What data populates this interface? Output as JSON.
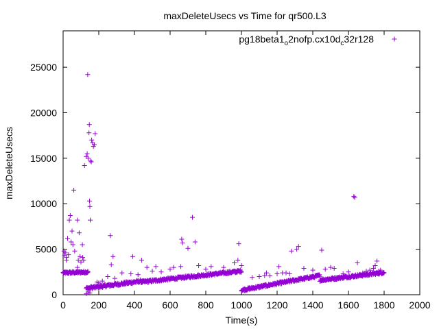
{
  "chart_data": {
    "type": "scatter",
    "title": "maxDeleteUsecs vs Time for qr500.L3",
    "xlabel": "Time(s)",
    "ylabel": "maxDeleteUsecs",
    "xlim": [
      0,
      2000
    ],
    "ylim": [
      0,
      29000
    ],
    "xticks": [
      0,
      200,
      400,
      600,
      800,
      1000,
      1200,
      1400,
      1600,
      1800,
      2000
    ],
    "yticks": [
      0,
      5000,
      10000,
      15000,
      20000,
      25000
    ],
    "grid": false,
    "legend_position": "top-right",
    "series": [
      {
        "name": "pg18beta1_o2nofp.cx10d_c32r128",
        "legend_base": "pg18beta1",
        "legend_sub1": "o",
        "legend_mid": "2nofp.cx10d",
        "legend_sub2": "c",
        "legend_end": "32r128",
        "color": "#9400D3",
        "marker": "plus",
        "trends": [
          {
            "x": [
              0,
              140
            ],
            "y": [
              2400,
              2500
            ],
            "count": 70,
            "jitter": 120
          },
          {
            "x": [
              130,
              440
            ],
            "y": [
              700,
              1500
            ],
            "count": 150,
            "jitter": 150
          },
          {
            "x": [
              440,
              1000
            ],
            "y": [
              1400,
              2600
            ],
            "count": 270,
            "jitter": 130
          },
          {
            "x": [
              1000,
              1440
            ],
            "y": [
              500,
              2100
            ],
            "count": 210,
            "jitter": 130
          },
          {
            "x": [
              1440,
              1800
            ],
            "y": [
              1600,
              2450
            ],
            "count": 180,
            "jitter": 130
          }
        ],
        "outliers": [
          [
            5,
            4800
          ],
          [
            8,
            4300
          ],
          [
            12,
            4600
          ],
          [
            18,
            3800
          ],
          [
            20,
            4100
          ],
          [
            25,
            6200
          ],
          [
            30,
            4400
          ],
          [
            35,
            8200
          ],
          [
            40,
            8700
          ],
          [
            45,
            5800
          ],
          [
            50,
            7000
          ],
          [
            55,
            5500
          ],
          [
            60,
            11500
          ],
          [
            65,
            4800
          ],
          [
            80,
            8200
          ],
          [
            80,
            3000
          ],
          [
            85,
            3800
          ],
          [
            90,
            6800
          ],
          [
            95,
            4200
          ],
          [
            100,
            3600
          ],
          [
            108,
            5500
          ],
          [
            110,
            4100
          ],
          [
            115,
            3800
          ],
          [
            120,
            14200
          ],
          [
            130,
            15200
          ],
          [
            135,
            15500
          ],
          [
            138,
            24200
          ],
          [
            140,
            15000
          ],
          [
            145,
            17800
          ],
          [
            147,
            18700
          ],
          [
            148,
            10300
          ],
          [
            150,
            9700
          ],
          [
            152,
            8200
          ],
          [
            155,
            14700
          ],
          [
            158,
            14600
          ],
          [
            160,
            17000
          ],
          [
            165,
            16700
          ],
          [
            170,
            16300
          ],
          [
            175,
            16500
          ],
          [
            180,
            17700
          ],
          [
            130,
            100
          ],
          [
            140,
            300
          ],
          [
            150,
            200
          ],
          [
            190,
            1400
          ],
          [
            200,
            1300
          ],
          [
            220,
            1500
          ],
          [
            250,
            2000
          ],
          [
            265,
            6500
          ],
          [
            270,
            3300
          ],
          [
            280,
            4200
          ],
          [
            290,
            1800
          ],
          [
            330,
            2400
          ],
          [
            380,
            2300
          ],
          [
            390,
            4200
          ],
          [
            420,
            2200
          ],
          [
            440,
            3800
          ],
          [
            470,
            3000
          ],
          [
            500,
            2600
          ],
          [
            520,
            3100
          ],
          [
            550,
            2500
          ],
          [
            600,
            2800
          ],
          [
            620,
            3000
          ],
          [
            660,
            3100
          ],
          [
            665,
            6100
          ],
          [
            670,
            5700
          ],
          [
            700,
            5100
          ],
          [
            725,
            8500
          ],
          [
            740,
            5800
          ],
          [
            760,
            3200
          ],
          [
            800,
            2800
          ],
          [
            830,
            3100
          ],
          [
            900,
            3000
          ],
          [
            960,
            3500
          ],
          [
            980,
            3800
          ],
          [
            985,
            5600
          ],
          [
            1000,
            3200
          ],
          [
            1060,
            1900
          ],
          [
            1100,
            2000
          ],
          [
            1130,
            2100
          ],
          [
            1140,
            2400
          ],
          [
            1160,
            2100
          ],
          [
            1200,
            2300
          ],
          [
            1210,
            3100
          ],
          [
            1230,
            2400
          ],
          [
            1250,
            2400
          ],
          [
            1270,
            2300
          ],
          [
            1280,
            4800
          ],
          [
            1310,
            5000
          ],
          [
            1320,
            5300
          ],
          [
            1350,
            2900
          ],
          [
            1400,
            2700
          ],
          [
            1430,
            2200
          ],
          [
            1450,
            4900
          ],
          [
            1470,
            2800
          ],
          [
            1500,
            3000
          ],
          [
            1520,
            2900
          ],
          [
            1570,
            2300
          ],
          [
            1600,
            2500
          ],
          [
            1630,
            10800
          ],
          [
            1635,
            10700
          ],
          [
            1650,
            3500
          ],
          [
            1680,
            2400
          ],
          [
            1700,
            2600
          ],
          [
            1720,
            2700
          ],
          [
            1740,
            2900
          ],
          [
            1750,
            3200
          ],
          [
            1760,
            3700
          ],
          [
            1770,
            2600
          ],
          [
            1780,
            2700
          ]
        ]
      }
    ]
  }
}
